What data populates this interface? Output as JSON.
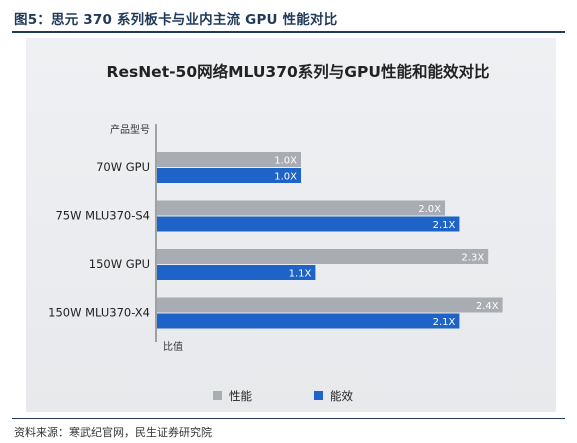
{
  "figure": {
    "caption": "图5：思元 370 系列板卡与业内主流 GPU 性能对比",
    "source": "资料来源：寒武纪官网，民生证券研究院"
  },
  "colors": {
    "performance": "#a8acb3",
    "efficiency": "#1e63c7",
    "text_dark": "#222222",
    "caption_color": "#1f3a5a"
  },
  "chart_data": {
    "type": "bar",
    "orientation": "horizontal",
    "title": "ResNet-50网络MLU370系列与GPU性能和能效对比",
    "ylabel": "产品型号",
    "xlabel": "比值",
    "categories": [
      "70W GPU",
      "75W MLU370-S4",
      "150W GPU",
      "150W MLU370-X4"
    ],
    "series": [
      {
        "name": "性能",
        "values": [
          1.0,
          2.0,
          2.3,
          2.4
        ],
        "labels": [
          "1.0X",
          "2.0X",
          "2.3X",
          "2.4X"
        ]
      },
      {
        "name": "能效",
        "values": [
          1.0,
          2.1,
          1.1,
          2.1
        ],
        "labels": [
          "1.0X",
          "2.1X",
          "1.1X",
          "2.1X"
        ]
      }
    ],
    "xlim": [
      0,
      2.5
    ],
    "grid": false,
    "legend_position": "bottom"
  }
}
